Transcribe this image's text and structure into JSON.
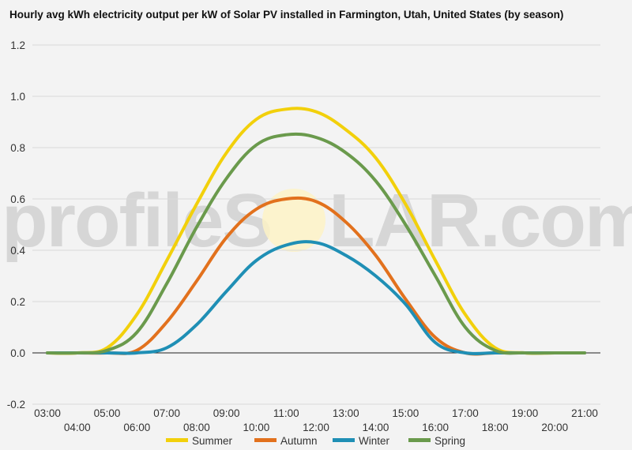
{
  "chart_data": {
    "type": "line",
    "title": "Hourly avg kWh electricity output per kW of Solar PV installed in Farmington, Utah, United States (by season)",
    "watermark": {
      "left": "profileS",
      "right": "LAR.com"
    },
    "xlabel": "",
    "ylabel": "",
    "ylim": [
      -0.2,
      1.2
    ],
    "yticks": [
      "-0.2",
      "0.0",
      "0.2",
      "0.4",
      "0.6",
      "0.8",
      "1.0",
      "1.2"
    ],
    "x": [
      "03:00",
      "04:00",
      "05:00",
      "06:00",
      "07:00",
      "08:00",
      "09:00",
      "10:00",
      "11:00",
      "12:00",
      "13:00",
      "14:00",
      "15:00",
      "16:00",
      "17:00",
      "18:00",
      "19:00",
      "20:00",
      "21:00"
    ],
    "grid": true,
    "legend_position": "bottom",
    "series": [
      {
        "name": "Summer",
        "color": "#f2d00b",
        "values": [
          0,
          0,
          0.02,
          0.15,
          0.36,
          0.58,
          0.78,
          0.91,
          0.95,
          0.94,
          0.87,
          0.76,
          0.58,
          0.36,
          0.15,
          0.02,
          0,
          0,
          0
        ]
      },
      {
        "name": "Autumn",
        "color": "#e2711d",
        "values": [
          0,
          0,
          0,
          0.01,
          0.12,
          0.28,
          0.45,
          0.56,
          0.6,
          0.59,
          0.51,
          0.38,
          0.21,
          0.06,
          0,
          0,
          0,
          0,
          0
        ]
      },
      {
        "name": "Winter",
        "color": "#1f8fb5",
        "values": [
          0,
          0,
          0,
          0,
          0.02,
          0.11,
          0.24,
          0.36,
          0.42,
          0.43,
          0.38,
          0.3,
          0.19,
          0.04,
          0,
          0,
          0,
          0,
          0
        ]
      },
      {
        "name": "Spring",
        "color": "#6a9a4c",
        "values": [
          0,
          0,
          0.01,
          0.08,
          0.27,
          0.49,
          0.68,
          0.81,
          0.85,
          0.84,
          0.78,
          0.67,
          0.5,
          0.3,
          0.1,
          0.01,
          0,
          0,
          0
        ]
      }
    ]
  }
}
